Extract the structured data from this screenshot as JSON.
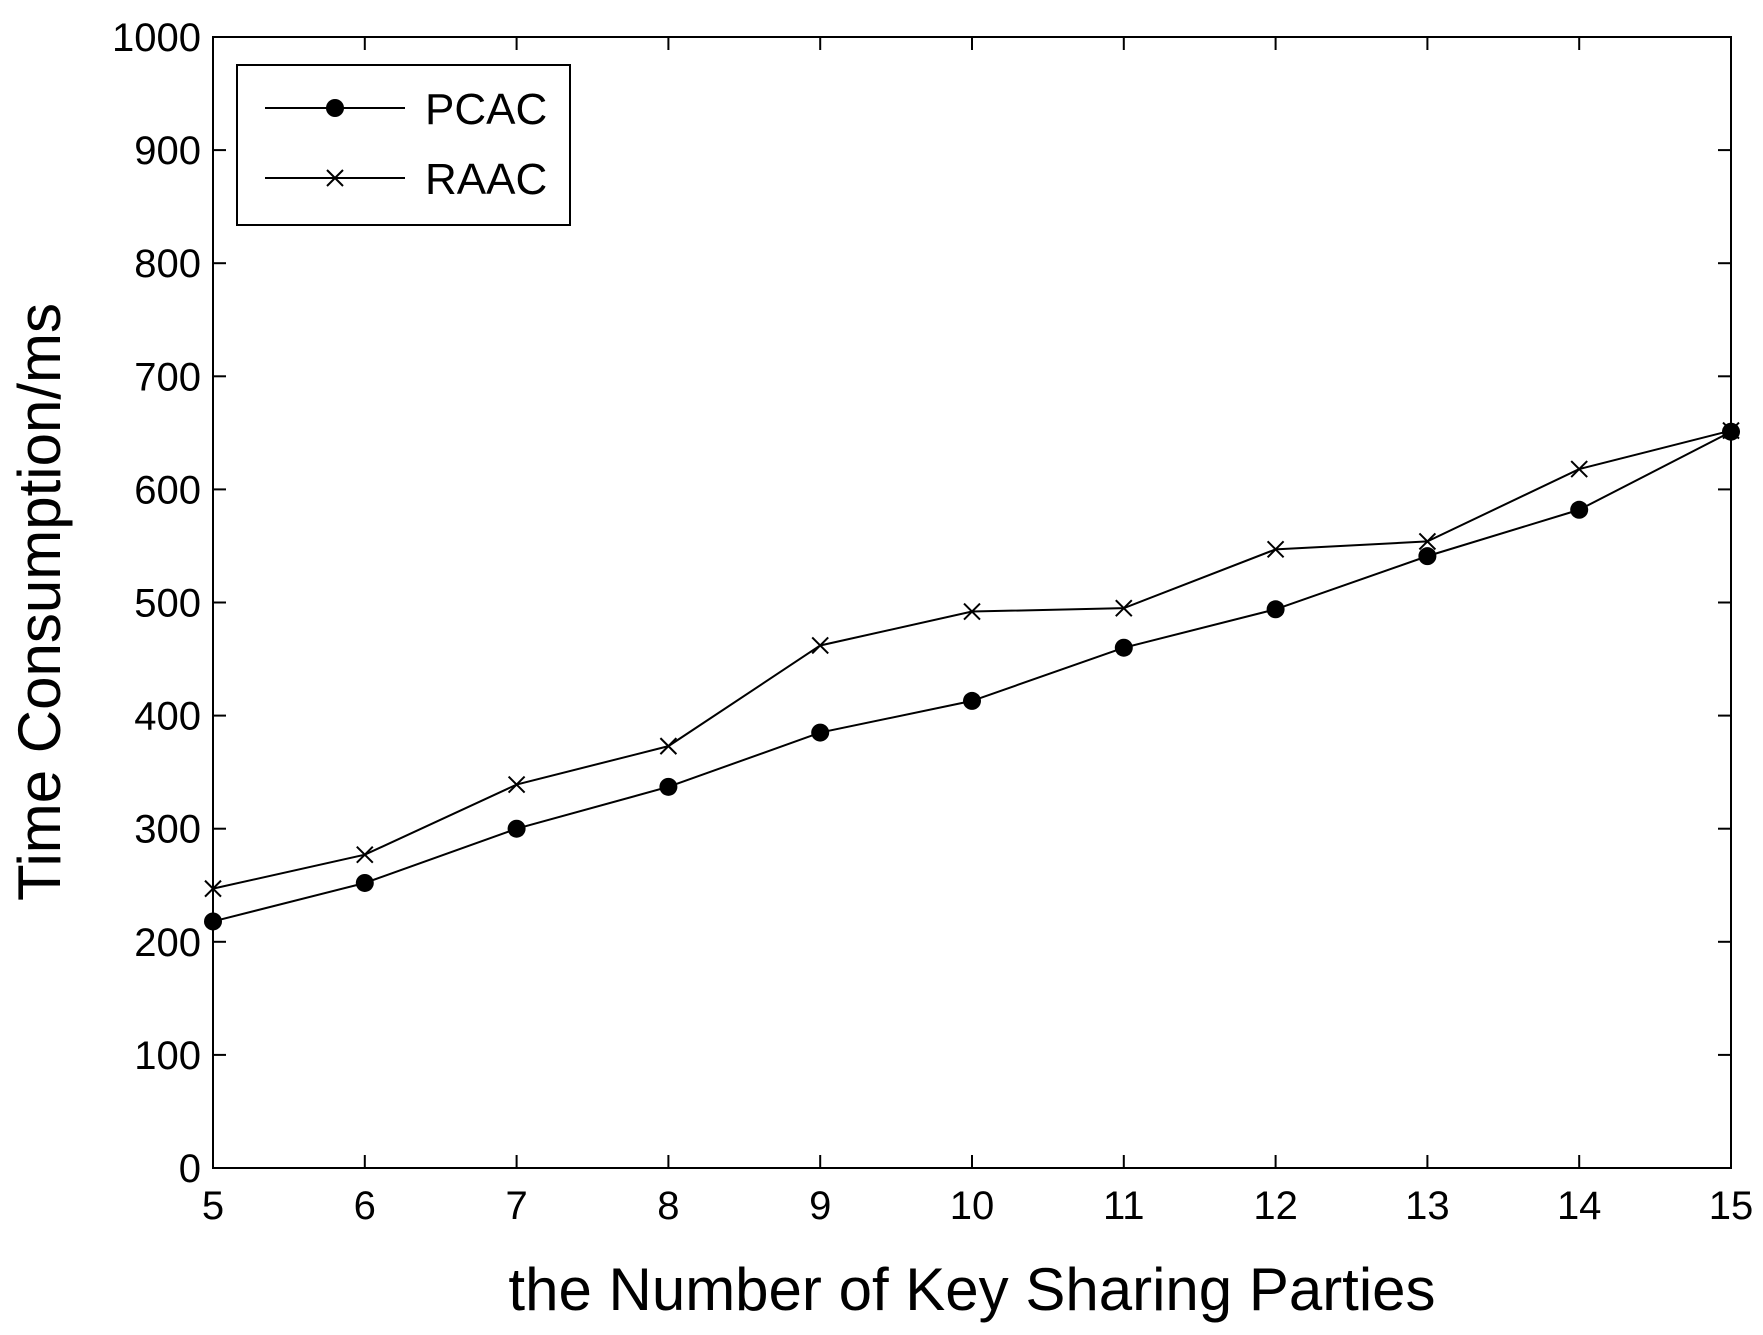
{
  "chart_data": {
    "type": "line",
    "title": "",
    "xlabel": "the Number of Key Sharing Parties",
    "ylabel": "Time Consumption/ms",
    "xlim": [
      5,
      15
    ],
    "ylim": [
      0,
      1000
    ],
    "xticks": [
      5,
      6,
      7,
      8,
      9,
      10,
      11,
      12,
      13,
      14,
      15
    ],
    "yticks": [
      0,
      100,
      200,
      300,
      400,
      500,
      600,
      700,
      800,
      900,
      1000
    ],
    "grid": false,
    "legend_position": "top-left",
    "x": [
      5,
      6,
      7,
      8,
      9,
      10,
      11,
      12,
      13,
      14,
      15
    ],
    "series": [
      {
        "name": "PCAC",
        "marker": "filled-circle",
        "values": [
          218,
          252,
          300,
          337,
          385,
          413,
          460,
          494,
          541,
          582,
          651
        ]
      },
      {
        "name": "RAAC",
        "marker": "x",
        "values": [
          247,
          277,
          339,
          373,
          462,
          492,
          495,
          547,
          554,
          618,
          652
        ]
      }
    ]
  }
}
